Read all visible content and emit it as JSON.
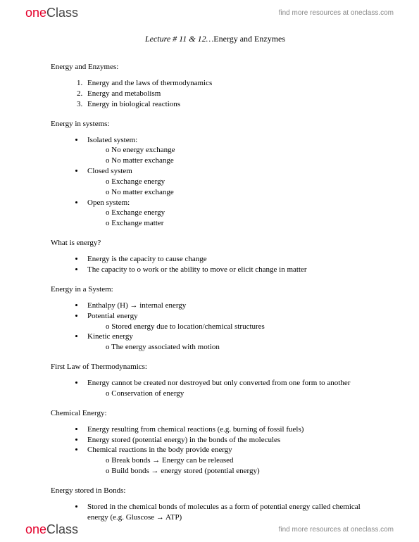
{
  "brand": {
    "part1": "one",
    "part2": "Class"
  },
  "header_link": "find more resources at oneclass.com",
  "footer_link": "find more resources at oneclass.com",
  "title_prefix": "Lecture # 11 & 12…",
  "title_rest": "Energy and Enzymes",
  "sections": {
    "s1_head": "Energy and Enzymes:",
    "s1_items": [
      "Energy and the laws of thermodynamics",
      "Energy and metabolism",
      "Energy in biological reactions"
    ],
    "s2_head": "Energy in systems:",
    "s2": {
      "b1": "Isolated system:",
      "b1_sub": [
        "No energy exchange",
        "No matter exchange"
      ],
      "b2": "Closed system",
      "b2_sub": [
        "Exchange energy",
        "No matter exchange"
      ],
      "b3": "Open system:",
      "b3_sub": [
        "Exchange energy",
        "Exchange matter"
      ]
    },
    "s3_head": "What is energy?",
    "s3_items": [
      "Energy is the capacity to cause change",
      "The capacity to o work or the ability to move or elicit change in matter"
    ],
    "s4_head": "Energy in a System:",
    "s4": {
      "b1": "Enthalpy (H) → internal energy",
      "b2": "Potential energy",
      "b2_sub": [
        "Stored energy due to location/chemical structures"
      ],
      "b3": "Kinetic energy",
      "b3_sub": [
        "The energy associated with motion"
      ]
    },
    "s5_head": "First Law of Thermodynamics:",
    "s5": {
      "b1": "Energy cannot be created nor destroyed but only converted from one form to another",
      "b1_sub": [
        "Conservation of energy"
      ]
    },
    "s6_head": "Chemical Energy:",
    "s6": {
      "b1": "Energy resulting from chemical reactions (e.g. burning of fossil fuels)",
      "b2": "Energy stored (potential energy) in the bonds of the molecules",
      "b3": "Chemical reactions in the body provide energy",
      "b3_sub": [
        "Break bonds → Energy can be released",
        "Build bonds → energy stored (potential energy)"
      ]
    },
    "s7_head": "Energy stored in Bonds:",
    "s7_items": [
      "Stored in the chemical bonds of molecules as a form of potential energy called chemical energy (e.g. Gluscose → ATP)"
    ]
  }
}
